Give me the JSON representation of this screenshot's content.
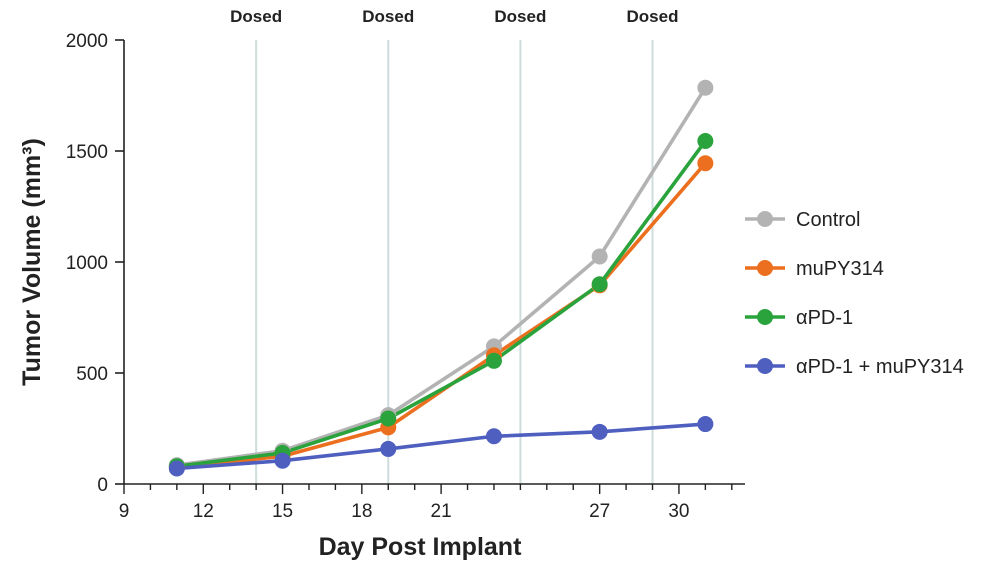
{
  "chart_data": {
    "type": "line",
    "xlabel": "Day Post Implant",
    "ylabel": "Tumor Volume (mm³)",
    "xlim": [
      9,
      32.5
    ],
    "ylim": [
      0,
      2000
    ],
    "x_ticks": [
      9,
      12,
      15,
      18,
      21,
      27,
      30
    ],
    "y_ticks": [
      0,
      500,
      1000,
      1500,
      2000
    ],
    "grid": false,
    "legend_position": "right",
    "dose_lines": [
      {
        "x": 14,
        "label": "Dosed"
      },
      {
        "x": 19,
        "label": "Dosed"
      },
      {
        "x": 24,
        "label": "Dosed"
      },
      {
        "x": 29,
        "label": "Dosed"
      }
    ],
    "x": [
      11,
      15,
      19,
      23,
      27,
      31
    ],
    "series": [
      {
        "name": "Control",
        "color": "#b3b3b3",
        "values": [
          85,
          150,
          310,
          620,
          1025,
          1785
        ]
      },
      {
        "name": "muPY314",
        "color": "#ec6f1f",
        "values": [
          75,
          125,
          255,
          580,
          895,
          1445
        ]
      },
      {
        "name": "αPD-1",
        "color": "#2aa33c",
        "values": [
          80,
          140,
          295,
          555,
          900,
          1545
        ]
      },
      {
        "name": "αPD-1 + muPY314",
        "color": "#4e5fbf",
        "values": [
          70,
          105,
          158,
          215,
          235,
          270
        ]
      }
    ]
  }
}
